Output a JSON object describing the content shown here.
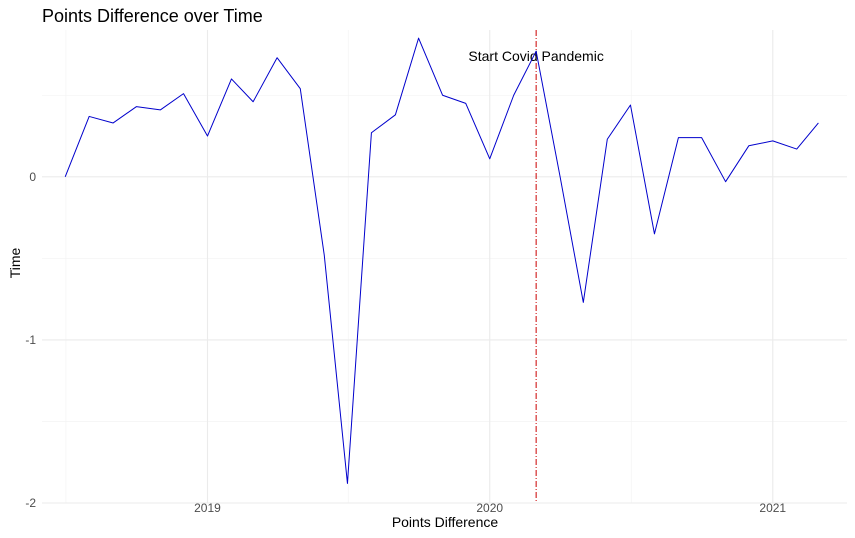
{
  "chart_data": {
    "type": "line",
    "title": "Points Difference over Time",
    "xlabel": "Points Difference",
    "ylabel": "Time",
    "x_tick_labels": [
      "2019",
      "2020",
      "2021"
    ],
    "y_tick_labels": [
      "0",
      "-1",
      "-2"
    ],
    "x": [
      "2018-07-01",
      "2018-08-01",
      "2018-09-01",
      "2018-10-01",
      "2018-11-01",
      "2018-12-01",
      "2019-01-01",
      "2019-02-01",
      "2019-03-01",
      "2019-04-01",
      "2019-05-01",
      "2019-06-01",
      "2019-07-01",
      "2019-08-01",
      "2019-09-01",
      "2019-10-01",
      "2019-11-01",
      "2019-12-01",
      "2020-01-01",
      "2020-02-01",
      "2020-03-01",
      "2020-04-01",
      "2020-05-01",
      "2020-06-01",
      "2020-07-01",
      "2020-08-01",
      "2020-09-01",
      "2020-10-01",
      "2020-11-01",
      "2020-12-01",
      "2021-01-01",
      "2021-02-01",
      "2021-03-01"
    ],
    "series": [
      {
        "values": [
          0.0,
          0.37,
          0.33,
          0.43,
          0.41,
          0.51,
          0.25,
          0.6,
          0.46,
          0.73,
          0.54,
          -0.48,
          -1.88,
          0.27,
          0.38,
          0.85,
          0.5,
          0.45,
          0.11,
          0.5,
          0.77,
          0.0,
          -0.77,
          0.23,
          0.44,
          -0.35,
          0.24,
          0.24,
          -0.03,
          0.19,
          0.22,
          0.17,
          0.33
        ],
        "color": "#0000cc"
      }
    ],
    "ylim": [
      -2.0,
      0.9
    ],
    "xlim": [
      "2018-06-01",
      "2021-04-07"
    ],
    "grid": true,
    "annotation": {
      "x": "2020-03-01",
      "label": "Start Covid Pandemic",
      "color": "#cc0000"
    }
  }
}
